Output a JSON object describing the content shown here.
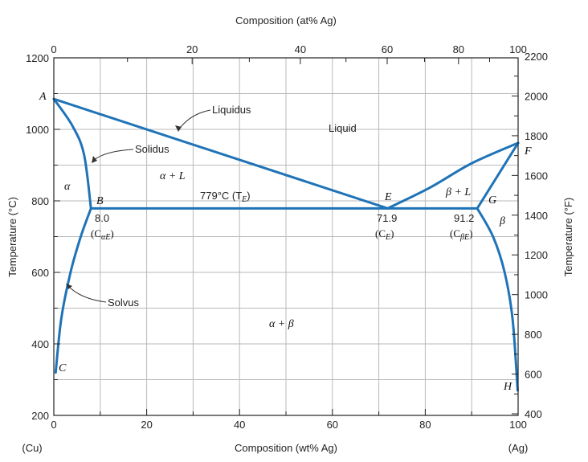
{
  "chart_data": {
    "type": "phase-diagram",
    "title": "",
    "xlabel_bottom": "Composition (wt% Ag)",
    "xlabel_top": "Composition (at% Ag)",
    "ylabel_left": "Temperature (°C)",
    "ylabel_right": "Temperature (°F)",
    "xlim": [
      0,
      100
    ],
    "ylim": [
      200,
      1200
    ],
    "x_ticks_bottom": [
      0,
      20,
      40,
      60,
      80,
      100
    ],
    "x_ticks_top": [
      0,
      20,
      40,
      60,
      80,
      100
    ],
    "y_ticks_left": [
      200,
      400,
      600,
      800,
      1000,
      1200
    ],
    "y_ticks_right": [
      400,
      600,
      800,
      1000,
      1200,
      1400,
      1600,
      1800,
      2000,
      2200
    ],
    "end_labels": {
      "left": "(Cu)",
      "right": "(Ag)"
    },
    "grid": true,
    "eutectic": {
      "temperature_label": "779°C (T",
      "temperature_sub": "E",
      "temperature_close": ")",
      "T": 779
    },
    "series": [
      {
        "name": "Liquidus",
        "points": [
          [
            0,
            1085
          ],
          [
            71.9,
            779
          ]
        ]
      },
      {
        "name": "Liquidus",
        "points": [
          [
            71.9,
            779
          ],
          [
            81,
            837
          ],
          [
            90,
            905
          ],
          [
            100,
            962
          ]
        ]
      },
      {
        "name": "Solidus",
        "points": [
          [
            0,
            1085
          ],
          [
            4,
            1010
          ],
          [
            6.5,
            930
          ],
          [
            8.0,
            779
          ]
        ]
      },
      {
        "name": "Solidus",
        "points": [
          [
            91.2,
            779
          ],
          [
            100,
            962
          ]
        ]
      },
      {
        "name": "Eutectic isotherm",
        "points": [
          [
            8.0,
            779
          ],
          [
            91.2,
            779
          ]
        ]
      },
      {
        "name": "Solvus",
        "points": [
          [
            8.0,
            779
          ],
          [
            5.8,
            700
          ],
          [
            3.6,
            600
          ],
          [
            1.6,
            470
          ],
          [
            0.4,
            320
          ]
        ]
      },
      {
        "name": "Solvus",
        "points": [
          [
            91.2,
            779
          ],
          [
            94.6,
            700
          ],
          [
            97.1,
            600
          ],
          [
            98.8,
            470
          ],
          [
            99.9,
            270
          ]
        ]
      }
    ],
    "point_labels": [
      {
        "text": "A",
        "x": 0,
        "y": 1085
      },
      {
        "text": "B",
        "x": 8.0,
        "y": 779
      },
      {
        "text": "C",
        "x": 0.4,
        "y": 320
      },
      {
        "text": "E",
        "x": 71.9,
        "y": 779
      },
      {
        "text": "F",
        "x": 100,
        "y": 962
      },
      {
        "text": "G",
        "x": 91.2,
        "y": 779
      },
      {
        "text": "H",
        "x": 99.9,
        "y": 270
      }
    ],
    "composition_labels": [
      {
        "value": "8.0",
        "sym": "(C",
        "sub": "αE",
        "close": ")"
      },
      {
        "value": "71.9",
        "sym": "(C",
        "sub": "E",
        "close": ")"
      },
      {
        "value": "91.2",
        "sym": "(C",
        "sub": "βE",
        "close": ")"
      }
    ],
    "region_labels": {
      "liquid": "Liquid",
      "alpha": "α",
      "alpha_l": "α + L",
      "beta_l": "β + L",
      "beta": "β",
      "alpha_beta": "α + β"
    },
    "curve_labels": {
      "liquidus": "Liquidus",
      "solidus": "Solidus",
      "solvus": "Solvus"
    }
  }
}
